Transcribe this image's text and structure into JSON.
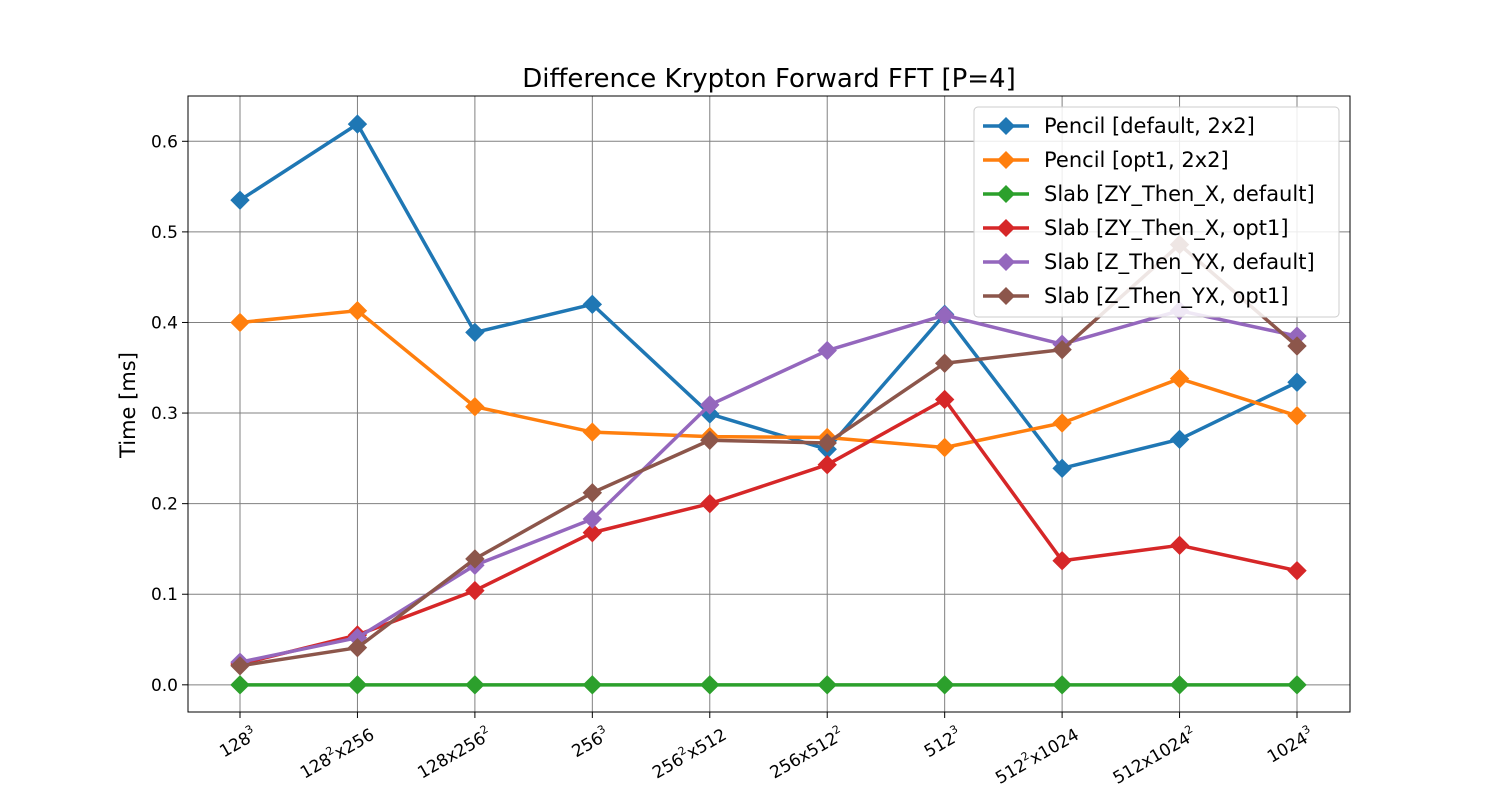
{
  "chart_data": {
    "type": "line",
    "title": "Difference Krypton Forward FFT [P=4]",
    "xlabel": "",
    "ylabel": "Time [ms]",
    "ylim": [
      -0.03,
      0.65
    ],
    "yticks": [
      "0.0",
      "0.1",
      "0.2",
      "0.3",
      "0.4",
      "0.5",
      "0.6"
    ],
    "ytick_values": [
      0.0,
      0.1,
      0.2,
      0.3,
      0.4,
      0.5,
      0.6
    ],
    "categories": [
      {
        "base": "128",
        "sup": "3",
        "tail": "",
        "sup2": ""
      },
      {
        "base": "128",
        "sup": "2",
        "tail": "x256",
        "sup2": ""
      },
      {
        "base": "128x256",
        "sup": "2",
        "tail": "",
        "sup2": ""
      },
      {
        "base": "256",
        "sup": "3",
        "tail": "",
        "sup2": ""
      },
      {
        "base": "256",
        "sup": "2",
        "tail": "x512",
        "sup2": ""
      },
      {
        "base": "256x512",
        "sup": "2",
        "tail": "",
        "sup2": ""
      },
      {
        "base": "512",
        "sup": "3",
        "tail": "",
        "sup2": ""
      },
      {
        "base": "512",
        "sup": "2",
        "tail": "x1024",
        "sup2": ""
      },
      {
        "base": "512x1024",
        "sup": "2",
        "tail": "",
        "sup2": ""
      },
      {
        "base": "1024",
        "sup": "3",
        "tail": "",
        "sup2": ""
      }
    ],
    "grid": true,
    "legend_position": "top-right",
    "series": [
      {
        "name": "Pencil [default, 2x2]",
        "color": "#1f77b4",
        "values": [
          0.535,
          0.619,
          0.389,
          0.42,
          0.299,
          0.26,
          0.409,
          0.239,
          0.271,
          0.334
        ]
      },
      {
        "name": "Pencil [opt1, 2x2]",
        "color": "#ff7f0e",
        "values": [
          0.4,
          0.413,
          0.307,
          0.279,
          0.274,
          0.273,
          0.262,
          0.289,
          0.338,
          0.297
        ]
      },
      {
        "name": "Slab [ZY_Then_X, default]",
        "color": "#2ca02c",
        "values": [
          0.0,
          0.0,
          0.0,
          0.0,
          0.0,
          0.0,
          0.0,
          0.0,
          0.0,
          0.0
        ]
      },
      {
        "name": "Slab [ZY_Then_X, opt1]",
        "color": "#d62728",
        "values": [
          0.023,
          0.055,
          0.104,
          0.168,
          0.2,
          0.243,
          0.315,
          0.137,
          0.154,
          0.126
        ]
      },
      {
        "name": "Slab [Z_Then_YX, default]",
        "color": "#9467bd",
        "values": [
          0.025,
          0.052,
          0.132,
          0.183,
          0.309,
          0.369,
          0.408,
          0.376,
          0.413,
          0.385
        ]
      },
      {
        "name": "Slab [Z_Then_YX, opt1]",
        "color": "#8c564b",
        "values": [
          0.021,
          0.041,
          0.139,
          0.212,
          0.27,
          0.267,
          0.355,
          0.37,
          0.486,
          0.374
        ]
      }
    ]
  }
}
